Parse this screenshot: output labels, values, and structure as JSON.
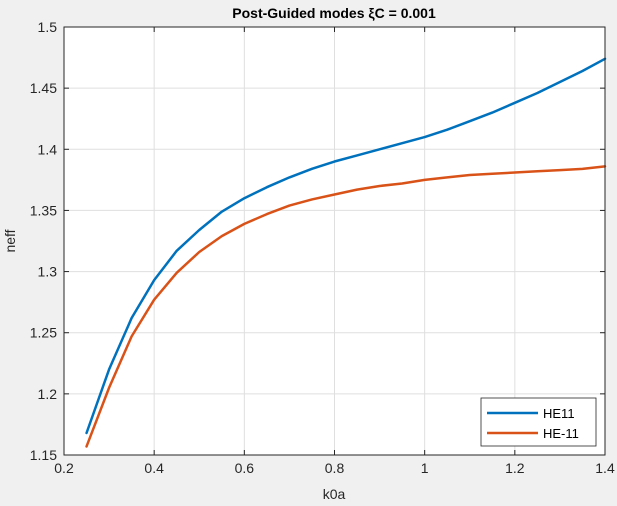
{
  "chart_data": {
    "type": "line",
    "title": "Post-Guided modes ξC = 0.001",
    "xlabel": "k0a",
    "ylabel": "neff",
    "xlim": [
      0.2,
      1.4
    ],
    "ylim": [
      1.15,
      1.5
    ],
    "xticks": [
      0.2,
      0.4,
      0.6,
      0.8,
      1,
      1.2,
      1.4
    ],
    "xtick_labels": [
      "0.2",
      "0.4",
      "0.6",
      "0.8",
      "1",
      "1.2",
      "1.4"
    ],
    "yticks": [
      1.15,
      1.2,
      1.25,
      1.3,
      1.35,
      1.4,
      1.45,
      1.5
    ],
    "ytick_labels": [
      "1.15",
      "1.2",
      "1.25",
      "1.3",
      "1.35",
      "1.4",
      "1.45",
      "1.5"
    ],
    "grid": true,
    "legend_position": "bottom-right",
    "x": [
      0.25,
      0.3,
      0.35,
      0.4,
      0.45,
      0.5,
      0.55,
      0.6,
      0.65,
      0.7,
      0.75,
      0.8,
      0.85,
      0.9,
      0.95,
      1.0,
      1.05,
      1.1,
      1.15,
      1.2,
      1.25,
      1.3,
      1.35,
      1.4
    ],
    "series": [
      {
        "name": "HE11",
        "color": "#0072bd",
        "values": [
          1.168,
          1.22,
          1.262,
          1.293,
          1.317,
          1.334,
          1.349,
          1.36,
          1.369,
          1.377,
          1.384,
          1.39,
          1.395,
          1.4,
          1.405,
          1.41,
          1.416,
          1.423,
          1.43,
          1.438,
          1.446,
          1.455,
          1.464,
          1.474
        ]
      },
      {
        "name": "HE-11",
        "color": "#d95319",
        "values": [
          1.157,
          1.205,
          1.247,
          1.277,
          1.299,
          1.316,
          1.329,
          1.339,
          1.347,
          1.354,
          1.359,
          1.363,
          1.367,
          1.37,
          1.372,
          1.375,
          1.377,
          1.379,
          1.38,
          1.381,
          1.382,
          1.383,
          1.384,
          1.386
        ]
      }
    ]
  }
}
